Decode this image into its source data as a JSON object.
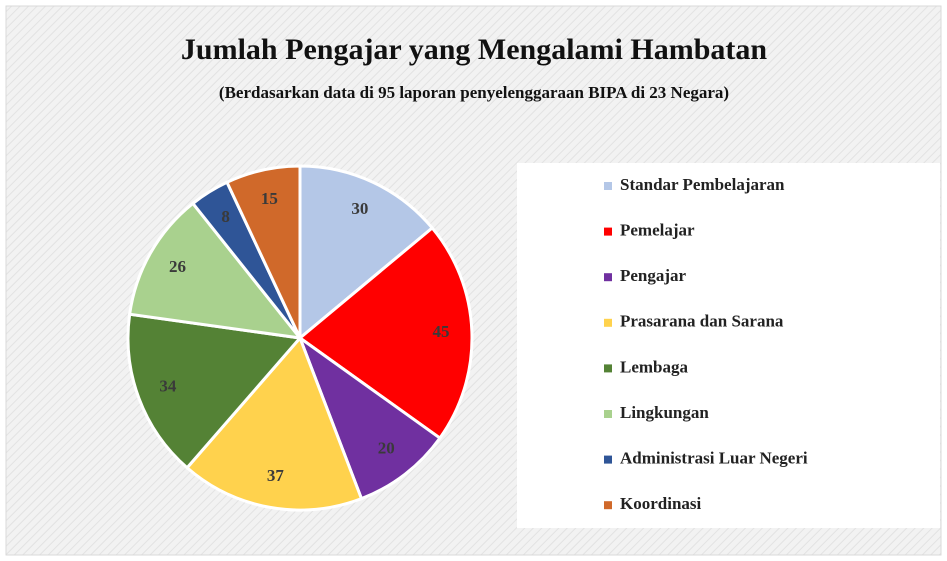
{
  "chart_data": {
    "type": "pie",
    "title": "Jumlah Pengajar yang Mengalami Hambatan",
    "subtitle": "(Berdasarkan data di 95 laporan penyelenggaraan BIPA di 23 Negara)",
    "categories": [
      "Standar Pembelajaran",
      "Pemelajar",
      "Pengajar",
      "Prasarana dan Sarana",
      "Lembaga",
      "Lingkungan",
      "Administrasi  Luar Negeri",
      "Koordinasi"
    ],
    "values": [
      30,
      45,
      20,
      37,
      34,
      26,
      8,
      15
    ],
    "colors": [
      "#b4c7e7",
      "#ff0000",
      "#7030a0",
      "#ffd24d",
      "#548235",
      "#a9d18e",
      "#2f5597",
      "#d0692a"
    ],
    "legend": "right"
  }
}
